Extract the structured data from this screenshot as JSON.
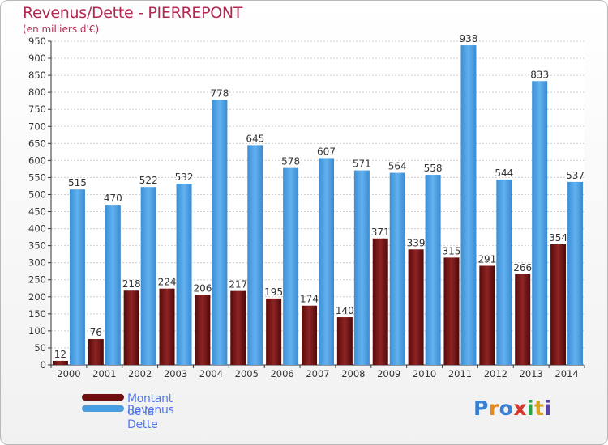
{
  "chart": {
    "title": "Revenus/Dette - PIERREPONT",
    "subtitle": "(en milliers d'€)",
    "legend": [
      {
        "label": "Montant de la Dette",
        "color": "#6e0f0f"
      },
      {
        "label": "Revenus",
        "color": "#4a9ee0"
      }
    ],
    "logo": {
      "text": "Proxiti",
      "colors": [
        "#3a7fd0",
        "#e58a1f",
        "#3a7fd0",
        "#d9362b",
        "#2ca24a",
        "#d9a21f",
        "#5a3fb0"
      ]
    }
  },
  "chart_data": {
    "type": "bar",
    "categories": [
      "2000",
      "2001",
      "2002",
      "2003",
      "2004",
      "2005",
      "2006",
      "2007",
      "2008",
      "2009",
      "2010",
      "2011",
      "2012",
      "2013",
      "2014"
    ],
    "series": [
      {
        "name": "Montant de la Dette",
        "color": "#6e0f0f",
        "values": [
          12,
          76,
          218,
          224,
          206,
          217,
          195,
          174,
          140,
          371,
          339,
          315,
          291,
          266,
          354
        ]
      },
      {
        "name": "Revenus",
        "color": "#4a9ee0",
        "values": [
          515,
          470,
          522,
          532,
          778,
          645,
          578,
          607,
          571,
          564,
          558,
          938,
          544,
          833,
          537
        ]
      }
    ],
    "ylim": [
      0,
      950
    ],
    "yticks": [
      0,
      50,
      100,
      150,
      200,
      250,
      300,
      350,
      400,
      450,
      500,
      550,
      600,
      650,
      700,
      750,
      800,
      850,
      900,
      950
    ],
    "grid": true
  }
}
